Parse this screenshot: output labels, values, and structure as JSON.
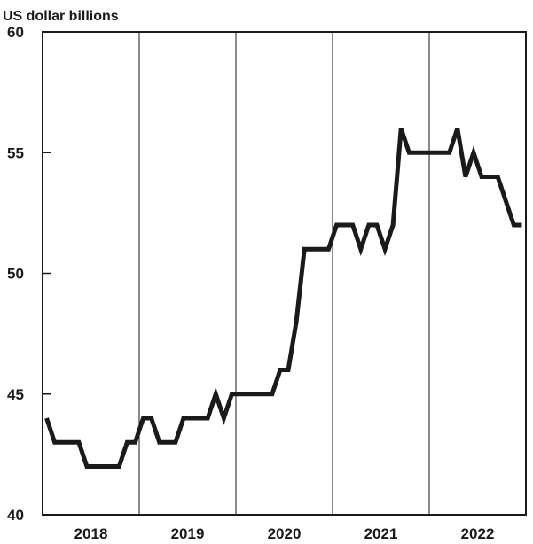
{
  "chart_data": {
    "type": "line",
    "title": "",
    "ylabel": "US dollar billions",
    "xlabel": "",
    "ylim": [
      40,
      60
    ],
    "y_ticks": [
      40,
      45,
      50,
      55,
      60
    ],
    "years": [
      "2018",
      "2019",
      "2020",
      "2021",
      "2022"
    ],
    "x_range": [
      "2018-01",
      "2022-12"
    ],
    "grid": "vertical year dividers",
    "legend": "none",
    "line_color": "#1a1a1a",
    "series": [
      {
        "x": [
          "2018-01",
          "2018-02",
          "2018-03",
          "2018-04",
          "2018-05",
          "2018-06",
          "2018-07",
          "2018-08",
          "2018-09",
          "2018-10",
          "2018-11",
          "2018-12",
          "2019-01",
          "2019-02",
          "2019-03",
          "2019-04",
          "2019-05",
          "2019-06",
          "2019-07",
          "2019-08",
          "2019-09",
          "2019-10",
          "2019-11",
          "2019-12",
          "2020-01",
          "2020-02",
          "2020-03",
          "2020-04",
          "2020-05",
          "2020-06",
          "2020-07",
          "2020-08",
          "2020-09",
          "2020-10",
          "2020-11",
          "2020-12",
          "2021-01",
          "2021-02",
          "2021-03",
          "2021-04",
          "2021-05",
          "2021-06",
          "2021-07",
          "2021-08",
          "2021-09",
          "2021-10",
          "2021-11",
          "2021-12",
          "2022-01",
          "2022-02",
          "2022-03",
          "2022-04",
          "2022-05",
          "2022-06",
          "2022-07",
          "2022-08",
          "2022-09",
          "2022-10",
          "2022-11",
          "2022-12"
        ],
        "y": [
          44,
          43,
          43,
          43,
          43,
          42,
          42,
          42,
          42,
          42,
          43,
          43,
          44,
          44,
          43,
          43,
          43,
          44,
          44,
          44,
          44,
          45,
          44,
          45,
          45,
          45,
          45,
          45,
          45,
          46,
          46,
          48,
          51,
          51,
          51,
          51,
          52,
          52,
          52,
          51,
          52,
          52,
          51,
          52,
          56,
          55,
          55,
          55,
          55,
          55,
          55,
          56,
          54,
          55,
          54,
          54,
          54,
          53,
          52,
          52
        ]
      }
    ]
  }
}
